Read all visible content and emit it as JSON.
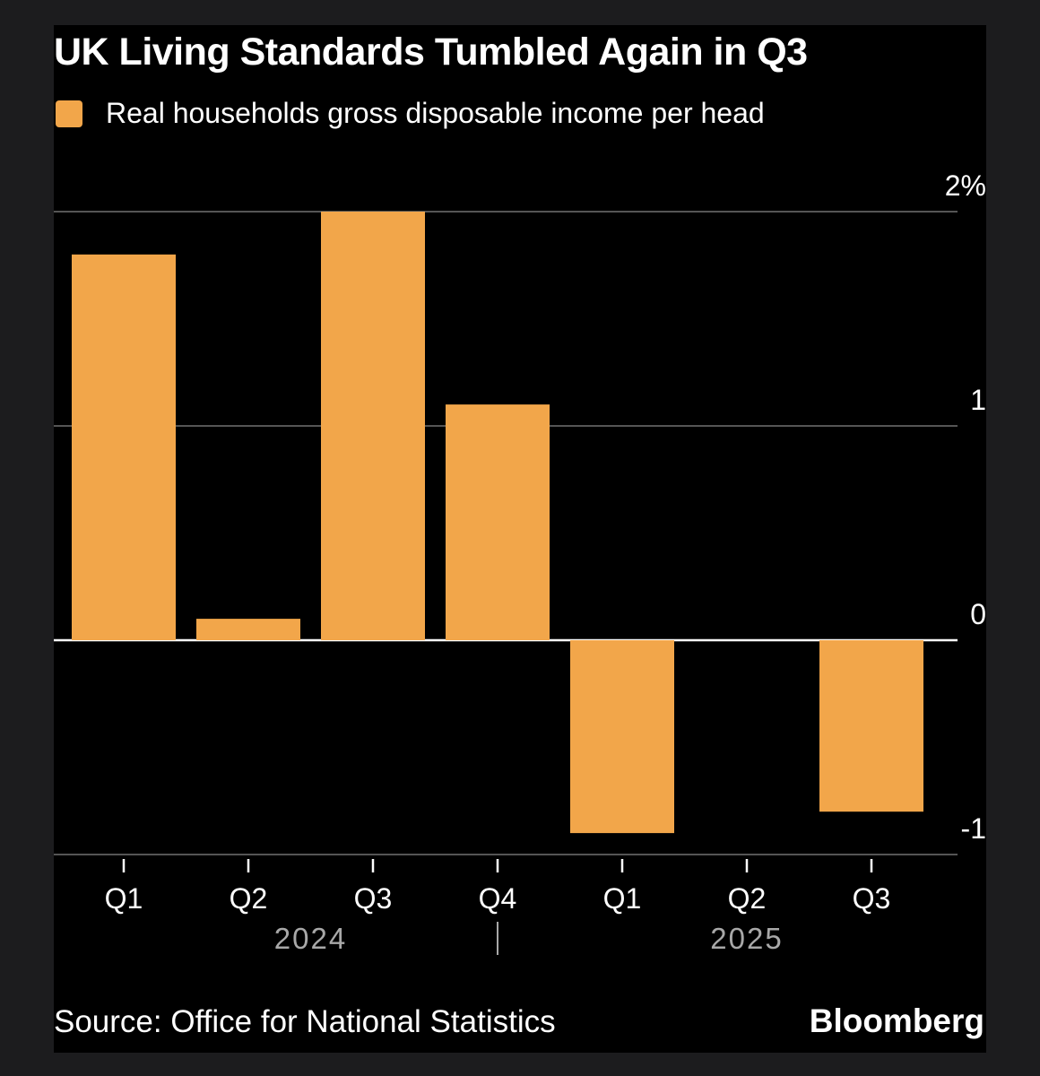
{
  "chart_data": {
    "type": "bar",
    "title": "UK Living Standards Tumbled Again in Q3",
    "legend": [
      "Real households gross disposable income per head"
    ],
    "categories": [
      "Q1",
      "Q2",
      "Q3",
      "Q4",
      "Q1",
      "Q2",
      "Q3"
    ],
    "year_groups": [
      {
        "label": "2024",
        "categories": [
          "Q1",
          "Q2",
          "Q3",
          "Q4"
        ]
      },
      {
        "label": "2025",
        "categories": [
          "Q1",
          "Q2",
          "Q3"
        ]
      }
    ],
    "series": [
      {
        "name": "Real households gross disposable income per head",
        "values": [
          1.8,
          0.1,
          2.0,
          1.1,
          -0.9,
          0.0,
          -0.8
        ]
      }
    ],
    "yticks": [
      {
        "value": 2,
        "label": "2%"
      },
      {
        "value": 1,
        "label": "1"
      },
      {
        "value": 0,
        "label": "0"
      },
      {
        "value": -1,
        "label": "-1"
      }
    ],
    "ylim": [
      -1,
      2
    ],
    "grid": true,
    "xlabel": "",
    "ylabel": ""
  },
  "source": "Source: Office for National Statistics",
  "brand": "Bloomberg",
  "colors": {
    "bar": "#f2a64a",
    "background": "#000000",
    "text": "#ffffff",
    "grid": "#555555",
    "zero_line": "#ffffff",
    "muted_text": "#a8a8a8"
  }
}
